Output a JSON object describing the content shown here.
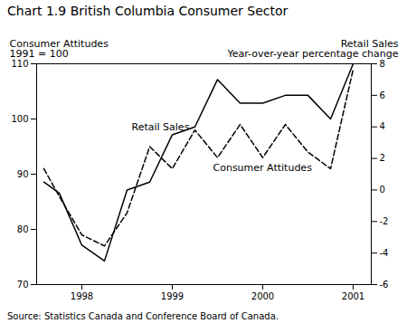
{
  "chart_data": {
    "type": "line",
    "title": "Chart 1.9 British Columbia Consumer Sector",
    "ylabel": [
      "Consumer Attitudes",
      "1991 = 100"
    ],
    "y2label": [
      "Retail Sales",
      "Year-over-year percentage change"
    ],
    "source": "Source: Statistics Canada and Conference Board of Canada.",
    "x": [
      1997.58,
      1997.75,
      1998.0,
      1998.25,
      1998.5,
      1998.75,
      1999.0,
      1999.25,
      1999.5,
      1999.75,
      2000.0,
      2000.25,
      2000.5,
      2000.75,
      2001.0
    ],
    "series": [
      {
        "name": "Consumer Attitudes",
        "color": "#000000",
        "line_style": "dashed",
        "axis": "y",
        "values": [
          91,
          86,
          79,
          77,
          83,
          95,
          91,
          98,
          93,
          99,
          93,
          99,
          94,
          91,
          109
        ]
      },
      {
        "name": "Retail Sales",
        "color": "#000000",
        "line_style": "solid",
        "axis": "y2",
        "values": [
          0.5,
          -0.2,
          -3.5,
          -4.5,
          0.0,
          0.5,
          3.5,
          4.0,
          7.0,
          5.5,
          5.5,
          6.0,
          6.0,
          4.5,
          8.0
        ]
      }
    ],
    "xlim": [
      1997.5,
      2001.2
    ],
    "xticks": [
      1998,
      1999,
      2000,
      2001
    ],
    "ylim": [
      70,
      110
    ],
    "yticks": [
      70,
      80,
      90,
      100,
      110
    ],
    "y2lim": [
      -6,
      8
    ],
    "y2ticks": [
      -6,
      -4,
      -2,
      0,
      2,
      4,
      6,
      8
    ],
    "annotations": [
      {
        "text": "Retail Sales",
        "x": 1998.55,
        "y": 3.8,
        "axis": "y2"
      },
      {
        "text": "Consumer Attitudes",
        "x": 1999.45,
        "y": 1.2,
        "axis": "y2"
      }
    ],
    "grid": false
  }
}
